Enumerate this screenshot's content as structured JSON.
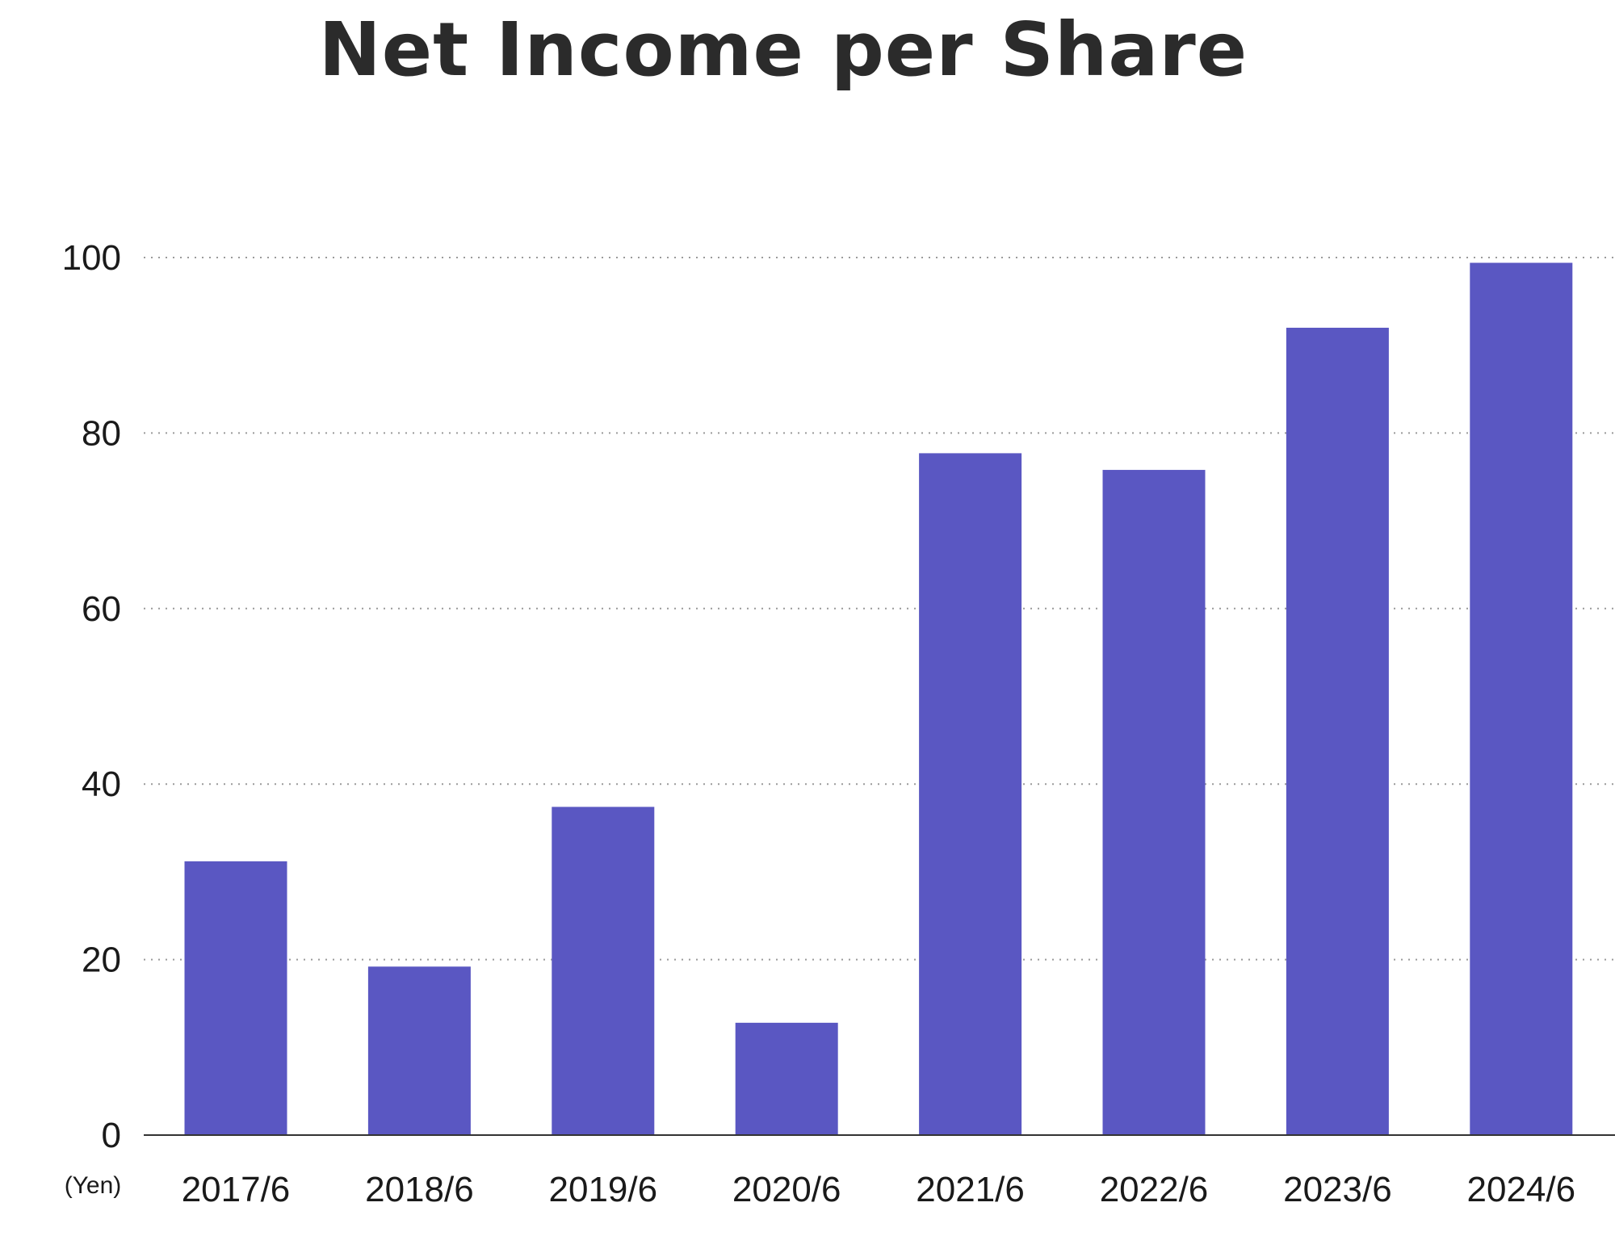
{
  "chart_data": {
    "type": "bar",
    "title": "Net Income per Share",
    "unit_label": "(Yen)",
    "categories": [
      "2017/6",
      "2018/6",
      "2019/6",
      "2020/6",
      "2021/6",
      "2022/6",
      "2023/6",
      "2024/6"
    ],
    "values": [
      31.2,
      19.2,
      37.4,
      12.8,
      77.7,
      75.8,
      92.0,
      99.4
    ],
    "ylim": [
      0,
      100
    ],
    "yticks": [
      0,
      20,
      40,
      60,
      80,
      100
    ],
    "grid": true,
    "legend": "none",
    "bar_color": "#5a57c2"
  }
}
